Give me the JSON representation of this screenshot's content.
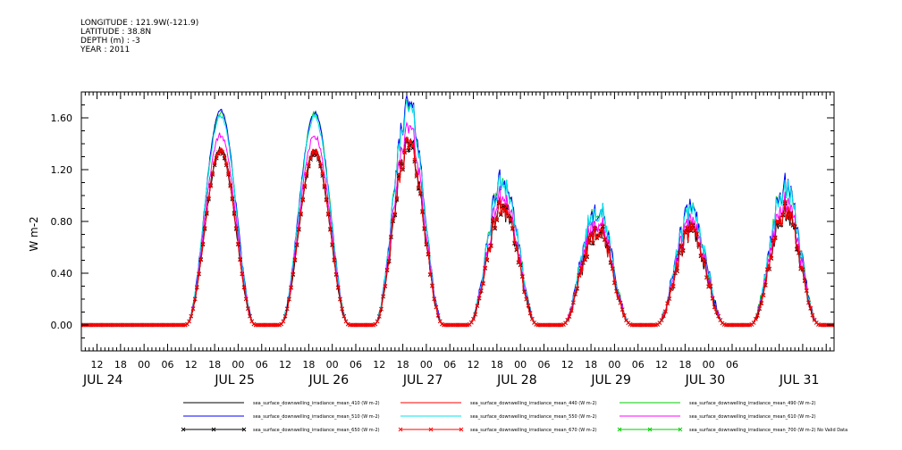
{
  "header": {
    "lines": [
      "LONGITUDE : 121.9W(-121.9)",
      "LATITUDE : 38.8N",
      "DEPTH (m) : -3",
      "YEAR : 2011"
    ]
  },
  "chart_data": {
    "type": "line",
    "ylabel": "W m-2",
    "ylim": [
      -0.2,
      1.8
    ],
    "yticks": [
      0.0,
      0.4,
      0.8,
      1.2,
      1.6
    ],
    "ytick_labels": [
      "0.00",
      "0.40",
      "0.80",
      "1.20",
      "1.60"
    ],
    "xlim_hours": [
      -16,
      176
    ],
    "x_origin": "JUL 24 00",
    "x_unit": "hours",
    "xtick_labels": [
      "12",
      "18",
      "00",
      "06",
      "12",
      "18",
      "00",
      "06",
      "12",
      "18",
      "00",
      "06",
      "12",
      "18",
      "00",
      "06",
      "12",
      "18",
      "00",
      "06",
      "12",
      "18",
      "00",
      "06",
      "12",
      "18",
      "00",
      "06"
    ],
    "date_labels": [
      "JUL 24",
      "JUL 25",
      "JUL 26",
      "JUL 27",
      "JUL 28",
      "JUL 29",
      "JUL 30",
      "JUL 31"
    ],
    "days": [
      {
        "date": "JUL 24",
        "peak_hour": 20.5,
        "start_hour": 10.5,
        "end_hour": 28.5,
        "peak": 1.36
      },
      {
        "date": "JUL 25",
        "peak_hour": 44.5,
        "start_hour": 34.5,
        "end_hour": 52.5,
        "peak": 1.35
      },
      {
        "date": "JUL 26",
        "peak_hour": 67.5,
        "start_hour": 58.5,
        "end_hour": 76.5,
        "peak": 1.4
      },
      {
        "date": "JUL 27",
        "peak_hour": 91.5,
        "start_hour": 82.5,
        "end_hour": 100.5,
        "peak": 0.93
      },
      {
        "date": "JUL 28",
        "peak_hour": 115.5,
        "start_hour": 106.5,
        "end_hour": 124.5,
        "peak": 0.75
      },
      {
        "date": "JUL 29",
        "peak_hour": 139.5,
        "start_hour": 130.5,
        "end_hour": 148.5,
        "peak": 0.72
      },
      {
        "date": "JUL 30",
        "peak_hour": 163.5,
        "start_hour": 154.5,
        "end_hour": 172.5,
        "peak": 0.87
      }
    ],
    "series": [
      {
        "name": "sea_surface_downwelling_irradiance_mean_410 (W m-2)",
        "color": "#000000",
        "scale": 1.0,
        "marker": ""
      },
      {
        "name": "sea_surface_downwelling_irradiance_mean_440 (W m-2)",
        "color": "#ff0000",
        "scale": 1.0,
        "marker": ""
      },
      {
        "name": "sea_surface_downwelling_irradiance_mean_490 (W m-2)",
        "color": "#00cc00",
        "scale": 1.21,
        "marker": ""
      },
      {
        "name": "sea_surface_downwelling_irradiance_mean_510 (W m-2)",
        "color": "#0000ff",
        "scale": 1.21,
        "marker": ""
      },
      {
        "name": "sea_surface_downwelling_irradiance_mean_550 (W m-2)",
        "color": "#00e5ee",
        "scale": 1.19,
        "marker": ""
      },
      {
        "name": "sea_surface_downwelling_irradiance_mean_610 (W m-2)",
        "color": "#ff00ff",
        "scale": 1.08,
        "marker": ""
      },
      {
        "name": "sea_surface_downwelling_irradiance_mean_650 (W m-2)",
        "color": "#000000",
        "scale": 0.98,
        "marker": "x"
      },
      {
        "name": "sea_surface_downwelling_irradiance_mean_670 (W m-2)",
        "color": "#ff0000",
        "scale": 0.99,
        "marker": "x"
      },
      {
        "name": "sea_surface_downwelling_irradiance_mean_700 (W m-2) No Valid Data",
        "color": "#00cc00",
        "scale": 0,
        "marker": "x"
      }
    ]
  }
}
